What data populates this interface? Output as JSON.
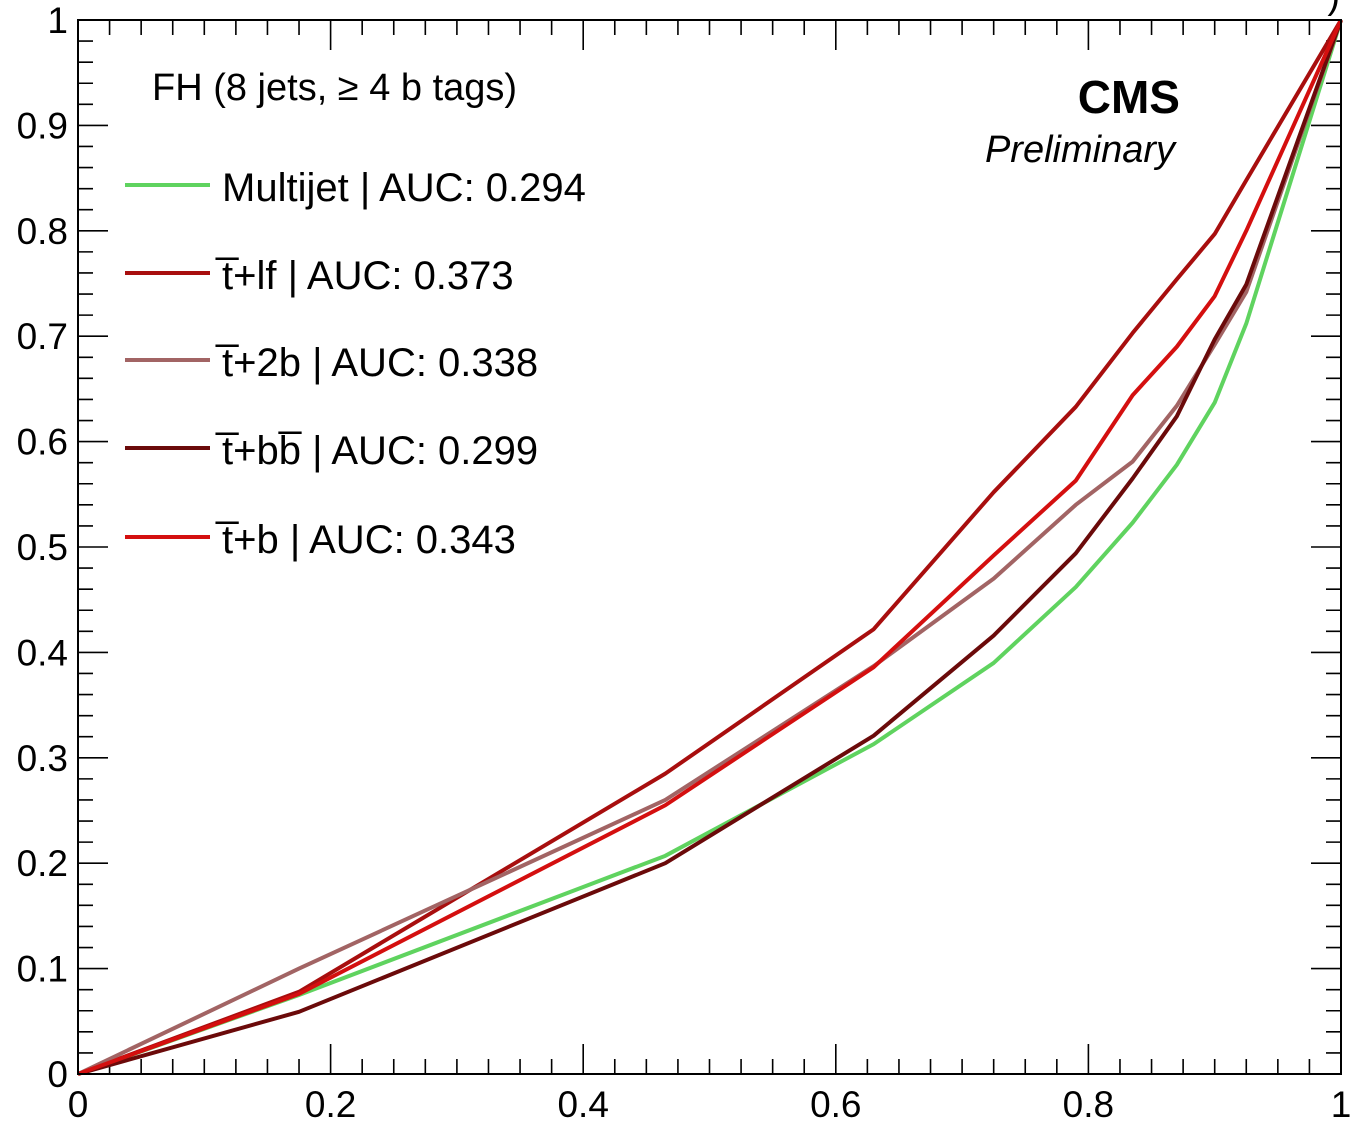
{
  "chart_data": {
    "type": "line",
    "title": "",
    "xlabel": "",
    "ylabel": "",
    "xlim": [
      0,
      1
    ],
    "ylim": [
      0,
      1
    ],
    "x_ticks": [
      "0",
      "0.2",
      "0.4",
      "0.6",
      "0.8",
      "1"
    ],
    "y_ticks": [
      "0",
      "0.1",
      "0.2",
      "0.3",
      "0.4",
      "0.5",
      "0.6",
      "0.7",
      "0.8",
      "0.9",
      "1"
    ],
    "grid": false,
    "legend_position": "top-left",
    "annotations": {
      "selection": "FH (8 jets, ≥ 4 b tags)",
      "experiment": "CMS",
      "status": "Preliminary",
      "top_right_partial": ")"
    },
    "series": [
      {
        "label_prefix": "Multijet",
        "label_suffix": " | AUC: 0.294",
        "color": "#5fd35f",
        "x": [
          0,
          0.175,
          0.465,
          0.63,
          0.725,
          0.79,
          0.835,
          0.87,
          0.9,
          0.925,
          1.0
        ],
        "y": [
          0,
          0.075,
          0.207,
          0.313,
          0.39,
          0.462,
          0.523,
          0.578,
          0.637,
          0.712,
          1.0
        ]
      },
      {
        "label_prefix": "t̅+lf",
        "label_suffix": " | AUC: 0.373",
        "tt_bar": true,
        "color": "#a80e0e",
        "x": [
          0,
          0.175,
          0.465,
          0.63,
          0.725,
          0.79,
          0.835,
          0.87,
          0.9,
          0.925,
          1.0
        ],
        "y": [
          0,
          0.078,
          0.285,
          0.422,
          0.552,
          0.633,
          0.703,
          0.754,
          0.797,
          0.848,
          1.0
        ]
      },
      {
        "label_prefix": "t̅+2b",
        "label_suffix": " | AUC: 0.338",
        "tt_bar": true,
        "color": "#a26464",
        "x": [
          0,
          0.175,
          0.465,
          0.63,
          0.725,
          0.79,
          0.835,
          0.87,
          0.9,
          0.925,
          1.0
        ],
        "y": [
          0,
          0.1,
          0.26,
          0.387,
          0.47,
          0.54,
          0.581,
          0.634,
          0.692,
          0.742,
          1.0
        ]
      },
      {
        "label_prefix": "t̅+bb̅",
        "label_suffix": " | AUC: 0.299",
        "tt_bar": true,
        "color": "#6b0a0a",
        "x": [
          0,
          0.175,
          0.465,
          0.63,
          0.725,
          0.79,
          0.835,
          0.87,
          0.9,
          0.925,
          1.0
        ],
        "y": [
          0,
          0.059,
          0.2,
          0.321,
          0.416,
          0.494,
          0.565,
          0.624,
          0.697,
          0.749,
          1.0
        ]
      },
      {
        "label_prefix": "t̅+b",
        "label_suffix": " | AUC: 0.343",
        "tt_bar": true,
        "color": "#d40f0f",
        "x": [
          0,
          0.175,
          0.465,
          0.63,
          0.725,
          0.79,
          0.835,
          0.87,
          0.9,
          0.925,
          1.0
        ],
        "y": [
          0,
          0.076,
          0.255,
          0.386,
          0.492,
          0.563,
          0.644,
          0.69,
          0.738,
          0.8,
          1.0
        ]
      }
    ]
  }
}
